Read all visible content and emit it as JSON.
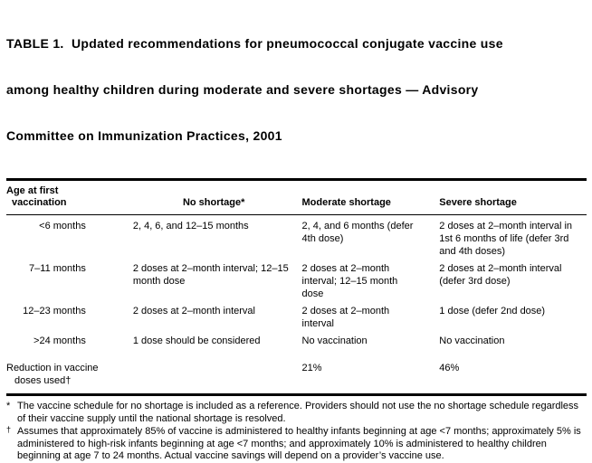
{
  "colors": {
    "text": "#000000",
    "background": "#ffffff"
  },
  "title_lines": [
    "TABLE 1.  Updated recommendations for pneumococcal conjugate vaccine use",
    "among healthy children during moderate and severe shortages — Advisory",
    "Committee on Immunization Practices, 2001"
  ],
  "title_full": "TABLE 1. Updated recommendations for pneumococcal conjugate vaccine use among healthy children during moderate and severe shortages — Advisory Committee on Immunization Practices, 2001",
  "headers": {
    "age": "Age at first vaccination",
    "no_shortage": "No shortage*",
    "moderate": "Moderate shortage",
    "severe": "Severe shortage"
  },
  "rows": [
    {
      "age": "<6 months",
      "no_shortage": "2, 4, 6, and 12–15 months",
      "moderate": "2, 4, and 6 months (defer 4th dose)",
      "severe": "2 doses at 2–month interval in 1st 6 months of life (defer 3rd and 4th doses)"
    },
    {
      "age": "7–11 months",
      "no_shortage": "2 doses at 2–month interval; 12–15 month dose",
      "moderate": "2 doses at 2–month interval; 12–15 month dose",
      "severe": "2 doses at 2–month interval (defer 3rd dose)"
    },
    {
      "age": "12–23 months",
      "no_shortage": "2 doses at 2–month interval",
      "moderate": "2 doses at 2–month interval",
      "severe": "1 dose (defer 2nd dose)"
    },
    {
      "age": ">24 months",
      "no_shortage": "1 dose should be considered",
      "moderate": "No vaccination",
      "severe": "No vaccination"
    }
  ],
  "summary": {
    "label": "Reduction in vaccine doses used†",
    "no_shortage": "",
    "moderate": "21%",
    "severe": "46%"
  },
  "footnotes": [
    {
      "marker": "*",
      "text": "The vaccine schedule for no shortage is included as a reference. Providers should not use the no shortage schedule regardless of their vaccine supply until the national shortage is resolved."
    },
    {
      "marker": "†",
      "text": "Assumes that approximately 85% of vaccine is administered to healthy infants beginning at age <7 months; approximately 5% is administered to high-risk infants beginning at age <7 months; and approximately 10% is administered to healthy children beginning at age 7 to 24 months.  Actual vaccine savings will depend on a provider’s vaccine use."
    }
  ]
}
